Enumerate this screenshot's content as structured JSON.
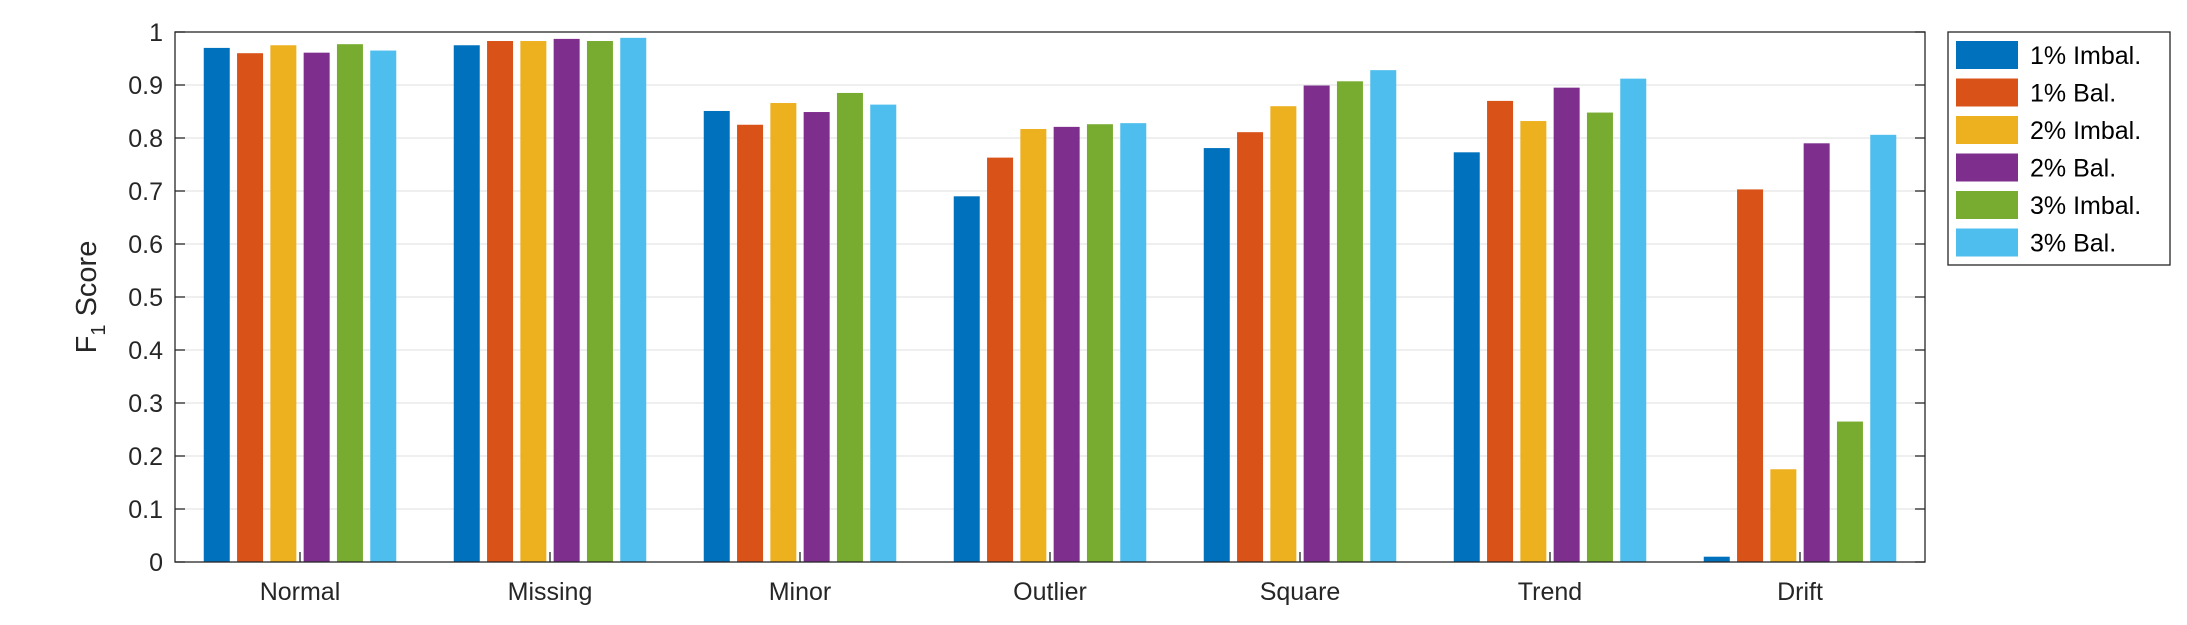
{
  "chart_data": {
    "type": "bar",
    "categories": [
      "Normal",
      "Missing",
      "Minor",
      "Outlier",
      "Square",
      "Trend",
      "Drift"
    ],
    "series": [
      {
        "name": "1% Imbal.",
        "color": "#0072BD",
        "values": [
          0.97,
          0.975,
          0.851,
          0.69,
          0.781,
          0.773,
          0.01
        ]
      },
      {
        "name": "1% Bal.",
        "color": "#D95319",
        "values": [
          0.96,
          0.983,
          0.825,
          0.763,
          0.811,
          0.87,
          0.703
        ]
      },
      {
        "name": "2% Imbal.",
        "color": "#EDB120",
        "values": [
          0.975,
          0.983,
          0.866,
          0.817,
          0.86,
          0.832,
          0.175
        ]
      },
      {
        "name": "2% Bal.",
        "color": "#7E2F8E",
        "values": [
          0.961,
          0.987,
          0.849,
          0.821,
          0.899,
          0.895,
          0.79
        ]
      },
      {
        "name": "3% Imbal.",
        "color": "#77AC30",
        "values": [
          0.977,
          0.983,
          0.885,
          0.826,
          0.907,
          0.848,
          0.265
        ]
      },
      {
        "name": "3% Bal.",
        "color": "#4DBEEE",
        "values": [
          0.965,
          0.989,
          0.863,
          0.828,
          0.928,
          0.912,
          0.806
        ]
      }
    ],
    "title": "",
    "xlabel": "",
    "ylabel": {
      "main": "F",
      "subscript": "1",
      "suffix": " Score"
    },
    "ylim": [
      0,
      1
    ],
    "yticks": [
      0,
      0.1,
      0.2,
      0.3,
      0.4,
      0.5,
      0.6,
      0.7,
      0.8,
      0.9,
      1
    ],
    "ytick_labels": [
      "0",
      "0.1",
      "0.2",
      "0.3",
      "0.4",
      "0.5",
      "0.6",
      "0.7",
      "0.8",
      "0.9",
      "1"
    ],
    "grid": "horizontal",
    "legend_position": "outside-right-top"
  }
}
